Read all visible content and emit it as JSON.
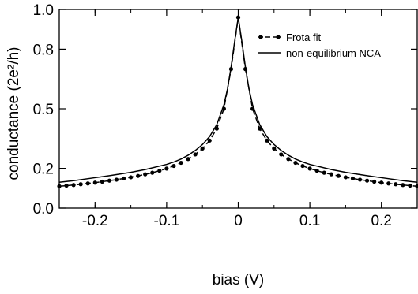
{
  "chart_data": {
    "type": "line",
    "xlabel": "bias (V)",
    "ylabel": "conductance (2e²/h)",
    "xlim": [
      -0.25,
      0.25
    ],
    "ylim": [
      0.0,
      1.0
    ],
    "grid": false,
    "legend_position": "top-right",
    "x_ticks": [
      -0.2,
      -0.1,
      0,
      0.1,
      0.2
    ],
    "x_tick_labels": [
      "-0.2",
      "-0.1",
      "0",
      "0.1",
      "0.2"
    ],
    "y_ticks": [
      0.0,
      0.2,
      0.5,
      0.8,
      1.0
    ],
    "y_tick_labels": [
      "0.0",
      "0.2",
      "0.5",
      "0.8",
      "1.0"
    ],
    "series": [
      {
        "name": "Frota fit",
        "style": "dashed-with-dots",
        "color": "#000000",
        "x": [
          -0.25,
          -0.24,
          -0.23,
          -0.22,
          -0.21,
          -0.2,
          -0.19,
          -0.18,
          -0.17,
          -0.16,
          -0.15,
          -0.14,
          -0.13,
          -0.12,
          -0.11,
          -0.1,
          -0.09,
          -0.08,
          -0.07,
          -0.06,
          -0.05,
          -0.04,
          -0.03,
          -0.02,
          -0.01,
          0.0,
          0.01,
          0.02,
          0.03,
          0.04,
          0.05,
          0.06,
          0.07,
          0.08,
          0.09,
          0.1,
          0.11,
          0.12,
          0.13,
          0.14,
          0.15,
          0.16,
          0.17,
          0.18,
          0.19,
          0.2,
          0.21,
          0.22,
          0.23,
          0.24,
          0.25
        ],
        "y": [
          0.11,
          0.113,
          0.116,
          0.12,
          0.124,
          0.128,
          0.133,
          0.138,
          0.143,
          0.149,
          0.155,
          0.162,
          0.17,
          0.178,
          0.188,
          0.199,
          0.212,
          0.228,
          0.247,
          0.27,
          0.3,
          0.34,
          0.4,
          0.5,
          0.7,
          0.96,
          0.7,
          0.5,
          0.4,
          0.34,
          0.3,
          0.27,
          0.247,
          0.228,
          0.212,
          0.199,
          0.188,
          0.178,
          0.17,
          0.162,
          0.155,
          0.149,
          0.143,
          0.138,
          0.133,
          0.128,
          0.124,
          0.12,
          0.116,
          0.113,
          0.11
        ]
      },
      {
        "name": "non-equilibrium NCA",
        "style": "solid",
        "color": "#000000",
        "x": [
          -0.25,
          -0.23,
          -0.2,
          -0.18,
          -0.15,
          -0.13,
          -0.1,
          -0.09,
          -0.08,
          -0.07,
          -0.06,
          -0.05,
          -0.04,
          -0.03,
          -0.02,
          -0.015,
          -0.01,
          -0.005,
          0.0,
          0.005,
          0.01,
          0.015,
          0.02,
          0.03,
          0.04,
          0.05,
          0.06,
          0.07,
          0.08,
          0.09,
          0.1,
          0.13,
          0.15,
          0.18,
          0.2,
          0.23,
          0.25
        ],
        "y": [
          0.13,
          0.138,
          0.153,
          0.163,
          0.18,
          0.194,
          0.22,
          0.232,
          0.247,
          0.266,
          0.29,
          0.32,
          0.36,
          0.42,
          0.52,
          0.6,
          0.71,
          0.84,
          0.96,
          0.84,
          0.71,
          0.6,
          0.52,
          0.42,
          0.36,
          0.32,
          0.29,
          0.266,
          0.247,
          0.232,
          0.22,
          0.194,
          0.18,
          0.163,
          0.153,
          0.138,
          0.13
        ]
      }
    ]
  }
}
